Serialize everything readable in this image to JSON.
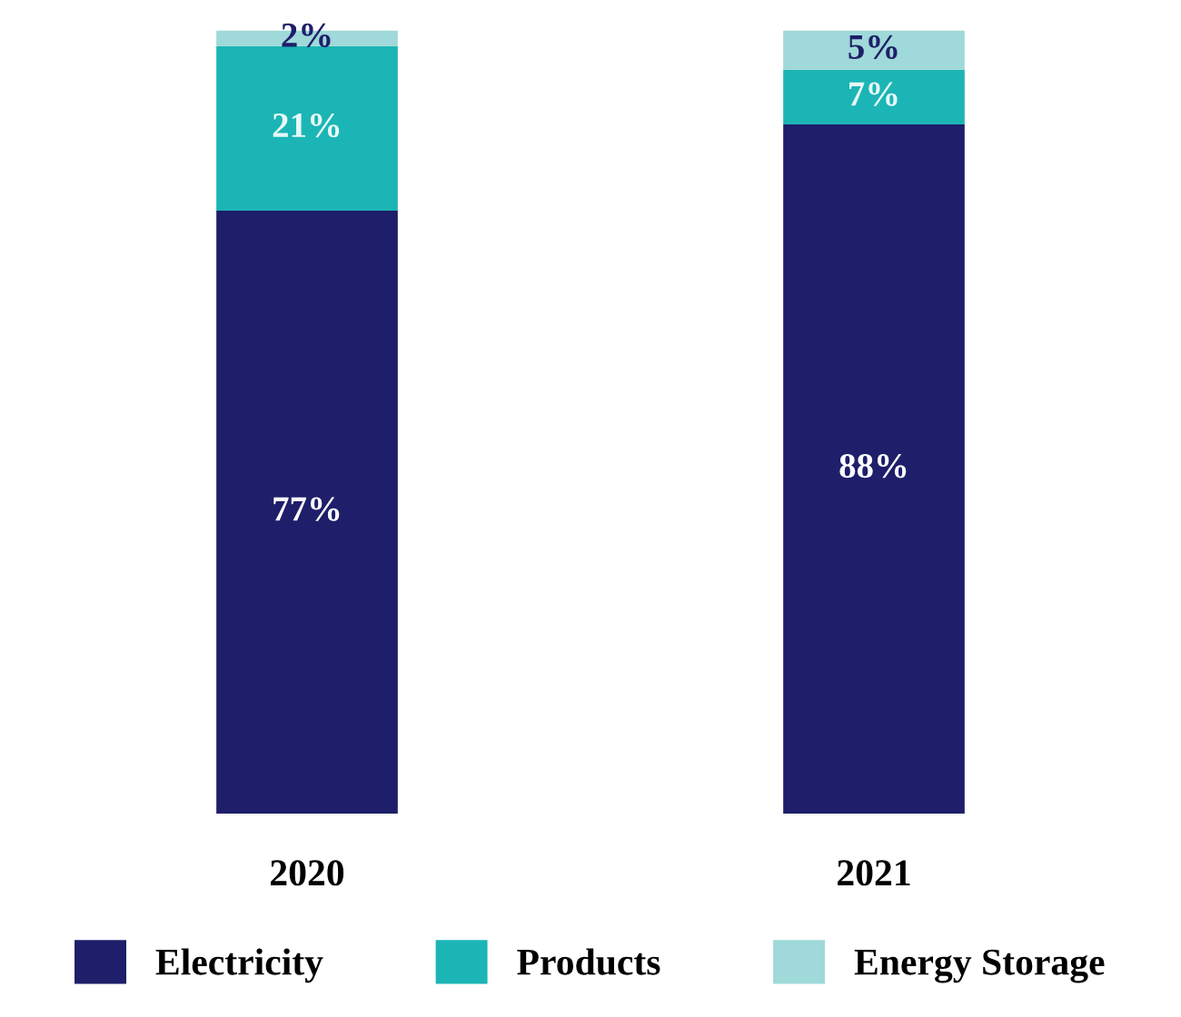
{
  "chart_data": {
    "type": "bar",
    "stacked": true,
    "categories": [
      "2020",
      "2021"
    ],
    "series": [
      {
        "name": "Electricity",
        "color": "#1e1e6a",
        "values": [
          77,
          88
        ],
        "value_labels": [
          "77%",
          "88%"
        ]
      },
      {
        "name": "Products",
        "color": "#1cb5b5",
        "values": [
          21,
          7
        ],
        "value_labels": [
          "21%",
          "7%"
        ]
      },
      {
        "name": "Energy Storage",
        "color": "#9fd9d9",
        "values": [
          2,
          5
        ],
        "value_labels": [
          "2%",
          "5%"
        ]
      }
    ],
    "legend": "bottom",
    "grid": false
  }
}
